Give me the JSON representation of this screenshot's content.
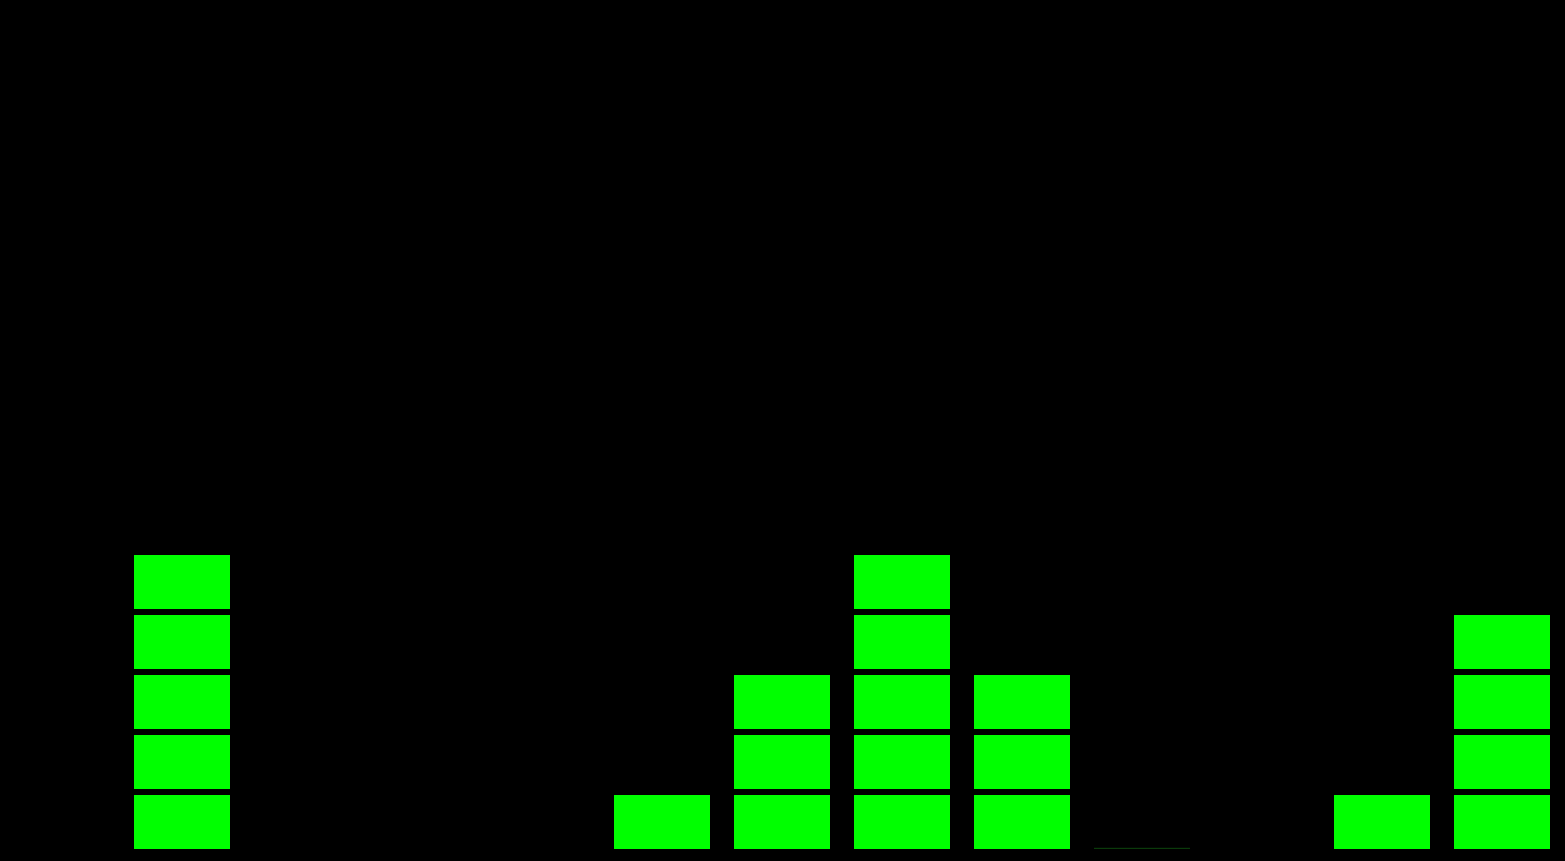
{
  "chart_data": {
    "type": "bar",
    "title": "",
    "xlabel": "",
    "ylabel": "",
    "categories": [
      "",
      "",
      "",
      "",
      "",
      "",
      "",
      "",
      "",
      "",
      "",
      "",
      ""
    ],
    "values": [
      0,
      5,
      0,
      0,
      0,
      1,
      3,
      5,
      3,
      0.02,
      0,
      1,
      4
    ],
    "ylim": [
      0,
      14
    ],
    "grid": false,
    "legend": "none",
    "segmented": true
  },
  "colors": {
    "background": "#000000",
    "bar": "#00ff00",
    "bar_dim": "#0a3a0a"
  }
}
